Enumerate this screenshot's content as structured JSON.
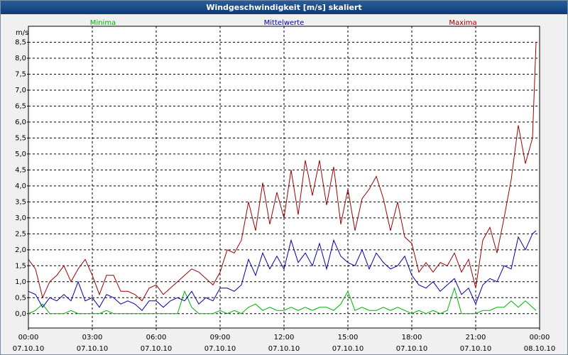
{
  "chart_data": {
    "type": "line",
    "title": "Windgeschwindigkeit [m/s] skaliert",
    "y_unit": "m/s",
    "x": [
      0,
      20,
      40,
      60,
      80,
      100,
      120,
      140,
      160,
      180,
      200,
      220,
      240,
      260,
      280,
      300,
      320,
      340,
      360,
      380,
      400,
      420,
      440,
      460,
      480,
      500,
      520,
      540,
      560,
      580,
      600,
      620,
      640,
      660,
      680,
      700,
      720,
      740,
      760,
      780,
      800,
      820,
      840,
      860,
      880,
      900,
      920,
      940,
      960,
      980,
      1000,
      1020,
      1040,
      1060,
      1080,
      1100,
      1120,
      1140,
      1160,
      1180,
      1200,
      1220,
      1240,
      1260,
      1280,
      1300,
      1320,
      1340,
      1360,
      1380,
      1400,
      1420,
      1430
    ],
    "xlim": [
      0,
      1440
    ],
    "xticks": [
      {
        "value": 0,
        "label": "00:00\n07.10.10"
      },
      {
        "value": 180,
        "label": "03:00\n07.10.10"
      },
      {
        "value": 360,
        "label": "06:00\n07.10.10"
      },
      {
        "value": 540,
        "label": "09:00\n07.10.10"
      },
      {
        "value": 720,
        "label": "12:00\n07.10.10"
      },
      {
        "value": 900,
        "label": "15:00\n07.10.10"
      },
      {
        "value": 1080,
        "label": "18:00\n07.10.10"
      },
      {
        "value": 1260,
        "label": "21:00\n07.10.10"
      },
      {
        "value": 1440,
        "label": "00:00\n08.10.10"
      }
    ],
    "ylim": [
      -0.45,
      9.0
    ],
    "yticks": [
      {
        "value": 0,
        "label": "0,0"
      },
      {
        "value": 0.5,
        "label": "0,5"
      },
      {
        "value": 1,
        "label": "1,0"
      },
      {
        "value": 1.5,
        "label": "1,5"
      },
      {
        "value": 2,
        "label": "2,0"
      },
      {
        "value": 2.5,
        "label": "2,5"
      },
      {
        "value": 3,
        "label": "3,0"
      },
      {
        "value": 3.5,
        "label": "3,5"
      },
      {
        "value": 4,
        "label": "4,0"
      },
      {
        "value": 4.5,
        "label": "4,5"
      },
      {
        "value": 5,
        "label": "5,0"
      },
      {
        "value": 5.5,
        "label": "5,5"
      },
      {
        "value": 6,
        "label": "6,0"
      },
      {
        "value": 6.5,
        "label": "6,5"
      },
      {
        "value": 7,
        "label": "7,0"
      },
      {
        "value": 7.5,
        "label": "7,5"
      },
      {
        "value": 8,
        "label": "8,0"
      },
      {
        "value": 8.5,
        "label": "8,5"
      }
    ],
    "grid": true,
    "series": [
      {
        "name": "Minima",
        "color": "#00b400",
        "values": [
          0.0,
          0.1,
          0.3,
          0.0,
          0.0,
          0.0,
          0.1,
          0.0,
          0.0,
          0.0,
          0.0,
          0.1,
          0.0,
          0.0,
          0.0,
          0.0,
          0.0,
          0.0,
          0.0,
          0.0,
          0.0,
          0.0,
          0.7,
          0.2,
          0.0,
          0.0,
          0.0,
          0.1,
          0.0,
          0.1,
          0.0,
          0.2,
          0.3,
          0.1,
          0.2,
          0.1,
          0.1,
          0.2,
          0.1,
          0.2,
          0.1,
          0.2,
          0.2,
          0.1,
          0.3,
          0.7,
          0.1,
          0.2,
          0.1,
          0.1,
          0.2,
          0.1,
          0.2,
          0.1,
          0.0,
          0.1,
          0.0,
          0.1,
          0.0,
          0.1,
          0.8,
          0.0,
          0.0,
          0.0,
          0.1,
          0.1,
          0.2,
          0.2,
          0.4,
          0.2,
          0.4,
          0.2,
          0.1
        ]
      },
      {
        "name": "Mittelwerte",
        "color": "#0000b4",
        "values": [
          0.7,
          0.6,
          0.2,
          0.5,
          0.4,
          0.6,
          0.4,
          1.0,
          0.4,
          0.5,
          0.2,
          0.6,
          0.5,
          0.3,
          0.4,
          0.3,
          0.1,
          0.4,
          0.4,
          0.2,
          0.4,
          0.5,
          0.4,
          0.7,
          0.3,
          0.5,
          0.4,
          0.8,
          0.8,
          0.7,
          0.9,
          1.7,
          1.2,
          1.9,
          1.4,
          1.8,
          1.4,
          2.3,
          1.6,
          1.9,
          1.5,
          2.2,
          1.4,
          2.3,
          1.8,
          1.6,
          1.5,
          2.0,
          1.4,
          1.9,
          1.6,
          1.4,
          1.5,
          1.8,
          1.2,
          0.9,
          0.8,
          1.0,
          0.7,
          0.9,
          1.1,
          0.6,
          0.8,
          0.3,
          0.9,
          1.1,
          1.0,
          1.5,
          1.4,
          2.4,
          2.0,
          2.5,
          2.6
        ]
      },
      {
        "name": "Maxima",
        "color": "#a00000",
        "values": [
          1.7,
          1.4,
          0.5,
          1.0,
          1.2,
          1.5,
          1.0,
          1.4,
          1.7,
          1.2,
          0.6,
          1.2,
          1.2,
          0.7,
          0.7,
          0.6,
          0.4,
          0.8,
          0.9,
          0.6,
          0.8,
          1.0,
          1.2,
          1.4,
          1.3,
          1.1,
          0.9,
          1.3,
          2.0,
          1.9,
          2.3,
          3.5,
          2.6,
          4.1,
          2.8,
          3.8,
          3.0,
          4.5,
          3.1,
          4.8,
          3.7,
          4.8,
          3.4,
          4.6,
          2.8,
          3.9,
          2.6,
          3.6,
          3.9,
          4.3,
          3.6,
          2.6,
          3.5,
          2.4,
          2.2,
          1.3,
          1.6,
          1.3,
          1.6,
          1.5,
          1.9,
          1.3,
          1.7,
          0.8,
          2.3,
          2.7,
          1.9,
          3.0,
          4.2,
          5.9,
          4.7,
          5.5,
          8.5
        ]
      }
    ]
  }
}
